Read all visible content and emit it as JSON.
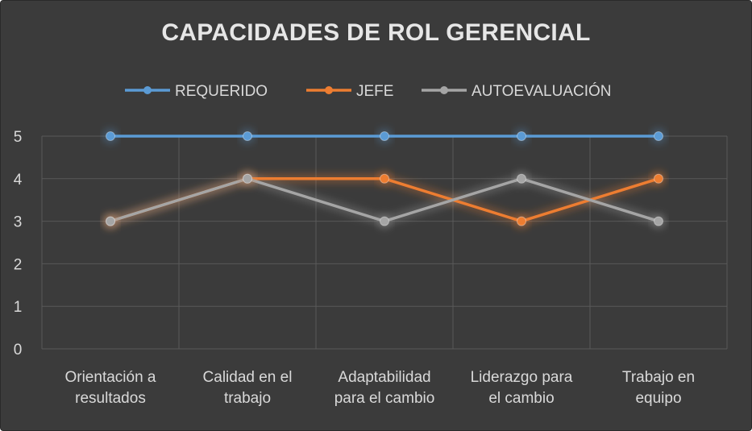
{
  "chart_data": {
    "type": "line",
    "title": "CAPACIDADES DE ROL GERENCIAL",
    "categories": [
      [
        "Orientación a",
        "resultados"
      ],
      [
        "Calidad en el",
        "trabajo"
      ],
      [
        "Adaptabilidad",
        "para el cambio"
      ],
      [
        "Liderazgo para",
        "el cambio"
      ],
      [
        "Trabajo en",
        "equipo"
      ]
    ],
    "series": [
      {
        "name": "REQUERIDO",
        "color": "#5b9bd5",
        "values": [
          5,
          5,
          5,
          5,
          5
        ]
      },
      {
        "name": "JEFE",
        "color": "#ed7d31",
        "values": [
          3,
          4,
          4,
          3,
          4
        ]
      },
      {
        "name": "AUTOEVALUACIÓN",
        "color": "#a5a5a5",
        "values": [
          3,
          4,
          3,
          4,
          3
        ]
      }
    ],
    "yticks": [
      "0",
      "1",
      "2",
      "3",
      "4",
      "5"
    ],
    "ylim": [
      0,
      5
    ],
    "xlabel": "",
    "ylabel": "",
    "legend": "top",
    "grid": true
  }
}
